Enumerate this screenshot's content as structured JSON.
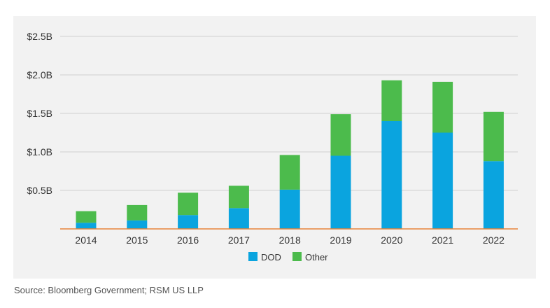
{
  "chart_data": {
    "type": "bar",
    "stacked": true,
    "categories": [
      "2014",
      "2015",
      "2016",
      "2017",
      "2018",
      "2019",
      "2020",
      "2021",
      "2022"
    ],
    "series": [
      {
        "name": "DOD",
        "color": "#0aa4df",
        "values": [
          0.08,
          0.11,
          0.18,
          0.27,
          0.51,
          0.95,
          1.4,
          1.25,
          0.88
        ]
      },
      {
        "name": "Other",
        "color": "#4cbb4c",
        "values": [
          0.15,
          0.2,
          0.29,
          0.29,
          0.45,
          0.54,
          0.53,
          0.66,
          0.64
        ]
      }
    ],
    "yticks": [
      0.5,
      1.0,
      1.5,
      2.0,
      2.5
    ],
    "ytick_labels": [
      "$0.5B",
      "$1.0B",
      "$1.5B",
      "$2.0B",
      "$2.5B"
    ],
    "ylim": [
      0,
      2.5
    ],
    "grid": true,
    "baseline_color": "#e8833a",
    "legend_position": "bottom-center"
  },
  "source": "Source: Bloomberg Government; RSM US LLP"
}
